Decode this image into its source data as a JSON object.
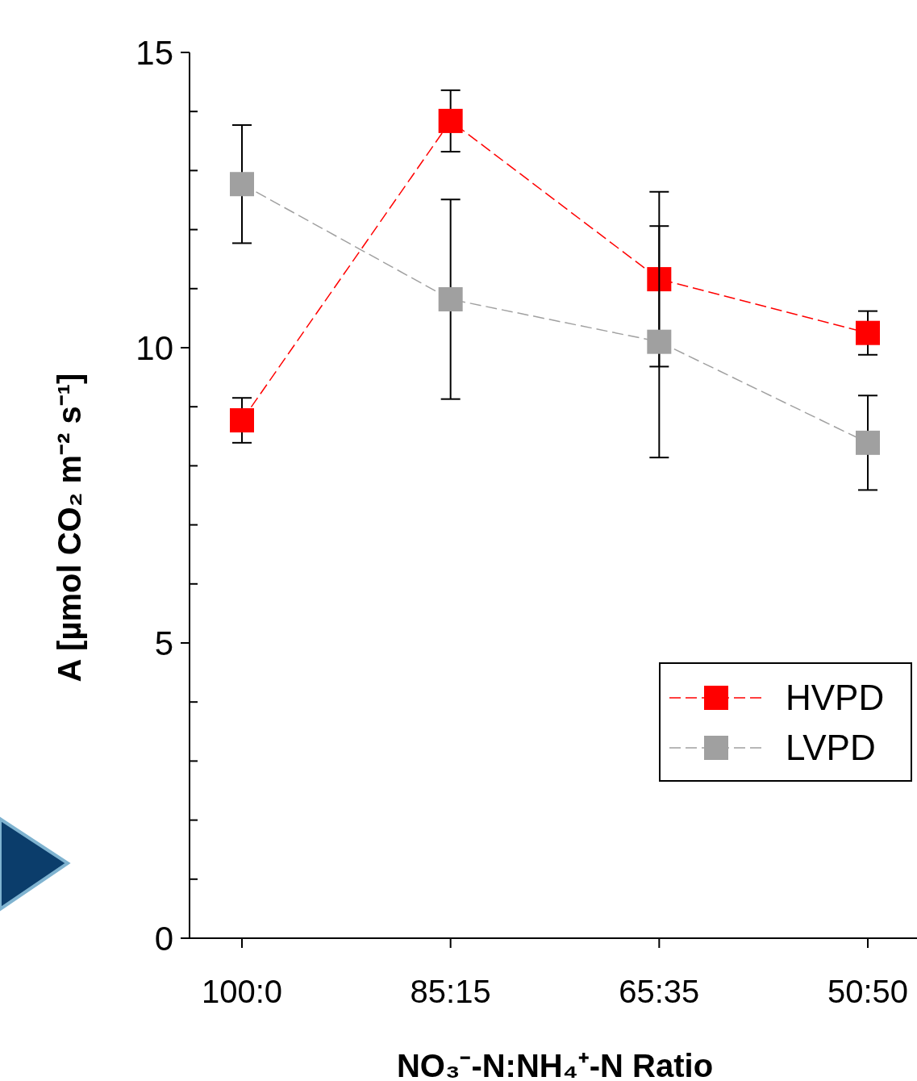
{
  "chart_data": {
    "type": "line",
    "xlabel": "NO₃⁻-N:NH₄⁺-N Ratio",
    "ylabel": "A [µmol CO₂ m⁻² s⁻¹]",
    "categories": [
      "100:0",
      "85:15",
      "65:35",
      "50:50"
    ],
    "series": [
      {
        "name": "HVPD",
        "color": "#ff0000",
        "values": [
          8.77,
          13.84,
          11.16,
          10.25
        ],
        "errors": [
          0.38,
          0.52,
          1.48,
          0.37
        ]
      },
      {
        "name": "LVPD",
        "color": "#a0a0a0",
        "values": [
          12.77,
          10.82,
          10.1,
          8.39
        ],
        "errors": [
          1.0,
          1.69,
          1.96,
          0.8
        ]
      }
    ],
    "ylim": [
      0,
      15
    ],
    "yticks": [
      0,
      {
        "value": 1,
        "label": null
      },
      {
        "value": 2,
        "label": null
      },
      {
        "value": 3,
        "label": null
      },
      {
        "value": 4,
        "label": null
      },
      5,
      {
        "value": 6,
        "label": null
      },
      {
        "value": 7,
        "label": null
      },
      {
        "value": 8,
        "label": null
      },
      {
        "value": 9,
        "label": null
      },
      10,
      {
        "value": 11,
        "label": null
      },
      {
        "value": 12,
        "label": null
      },
      {
        "value": 13,
        "label": null
      },
      {
        "value": 14,
        "label": null
      },
      15
    ],
    "marker": "square",
    "line_style": "dashed",
    "legend": "bottom right",
    "grid": false
  }
}
